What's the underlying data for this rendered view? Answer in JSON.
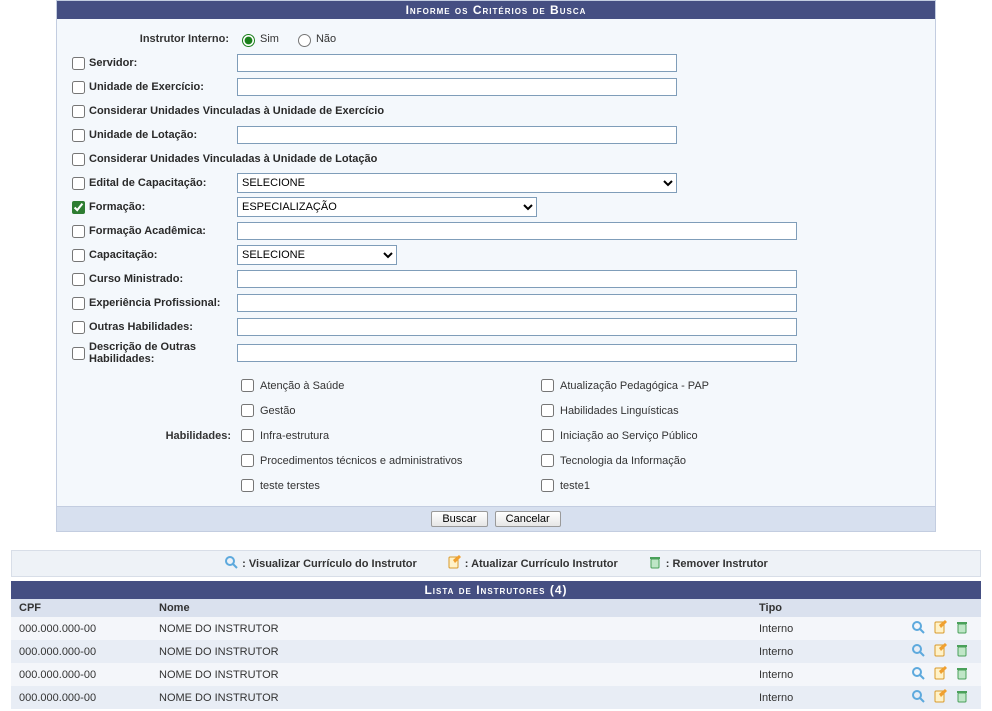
{
  "colors": {
    "header_bg": "#454f82",
    "header_text": "#ffffff",
    "panel_border": "#c3cde0",
    "body_bg": "#f4f8fc",
    "footer_bg": "#d7e0ef",
    "legend_bg": "#eef2f7",
    "th_bg": "#dae1ee",
    "row_odd": "#f4f6fa",
    "row_even": "#e8edf5",
    "input_border": "#7f9db9"
  },
  "search": {
    "title": "Informe os Critérios de Busca",
    "instrutor_interno_label": "Instrutor Interno:",
    "sim": "Sim",
    "nao": "Não",
    "servidor": "Servidor:",
    "unidade_exercicio": "Unidade de Exercício:",
    "considerar_exercicio": "Considerar Unidades Vinculadas à Unidade de Exercício",
    "unidade_lotacao": "Unidade de Lotação:",
    "considerar_lotacao": "Considerar Unidades Vinculadas à Unidade de Lotação",
    "edital": "Edital de Capacitação:",
    "edital_value": "SELECIONE",
    "formacao": "Formação:",
    "formacao_value": "ESPECIALIZAÇÃO",
    "formacao_academica": "Formação Acadêmica:",
    "capacitacao": "Capacitação:",
    "capacitacao_value": "SELECIONE",
    "curso_ministrado": "Curso Ministrado:",
    "experiencia": "Experiência Profissional:",
    "outras_habilidades": "Outras Habilidades:",
    "descricao_outras": "Descrição de Outras Habilidades:",
    "habilidades_label": "Habilidades:",
    "skills": [
      [
        "Atenção à Saúde",
        "Atualização Pedagógica - PAP"
      ],
      [
        "Gestão",
        "Habilidades Linguísticas"
      ],
      [
        "Infra-estrutura",
        "Iniciação ao Serviço Público"
      ],
      [
        "Procedimentos técnicos e administrativos",
        "Tecnologia da Informação"
      ],
      [
        "teste terstes",
        "teste1"
      ]
    ],
    "buscar": "Buscar",
    "cancelar": "Cancelar"
  },
  "legend": {
    "view": ": Visualizar Currículo do Instrutor",
    "edit": ": Atualizar Currículo Instrutor",
    "remove": ": Remover Instrutor"
  },
  "list": {
    "title": "Lista de Instrutores (4)",
    "columns": {
      "cpf": "CPF",
      "nome": "Nome",
      "tipo": "Tipo"
    },
    "rows": [
      {
        "cpf": "000.000.000-00",
        "nome": "NOME DO INSTRUTOR",
        "tipo": "Interno"
      },
      {
        "cpf": "000.000.000-00",
        "nome": "NOME DO INSTRUTOR",
        "tipo": "Interno"
      },
      {
        "cpf": "000.000.000-00",
        "nome": "NOME DO INSTRUTOR",
        "tipo": "Interno"
      },
      {
        "cpf": "000.000.000-00",
        "nome": "NOME DO INSTRUTOR",
        "tipo": "Interno"
      }
    ]
  },
  "icons": {
    "view_color": "#5da9dd",
    "edit_color": "#f0a030",
    "remove_color": "#4aa05a"
  }
}
